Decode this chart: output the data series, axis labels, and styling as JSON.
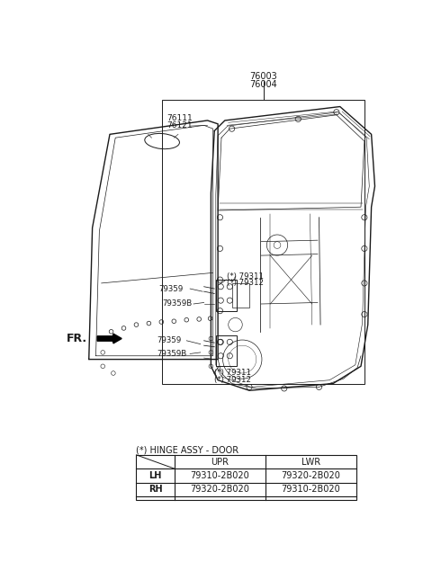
{
  "bg_color": "#ffffff",
  "fig_width": 4.8,
  "fig_height": 6.35,
  "color": "#1a1a1a",
  "table_title": "(*) HINGE ASSY - DOOR",
  "table": {
    "cols": [
      "",
      "UPR",
      "LWR"
    ],
    "rows": [
      [
        "LH",
        "79310-2B020",
        "79320-2B020"
      ],
      [
        "RH",
        "79320-2B020",
        "79310-2B020"
      ]
    ]
  }
}
